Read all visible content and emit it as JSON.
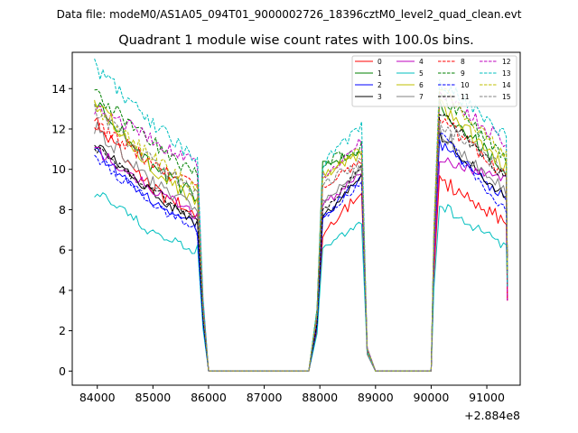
{
  "chart_data": {
    "type": "line",
    "suptitle": "Data file: modeM0/AS1A05_094T01_9000002726_18396cztM0_level2_quad_clean.evt",
    "title": "Quadrant 1 module wise count rates with 100.0s bins.",
    "xlabel": "",
    "ylabel": "",
    "x_offset_label": "+2.884e8",
    "xlim": [
      83550,
      91600
    ],
    "ylim": [
      -0.7,
      15.8
    ],
    "x_ticks": [
      84000,
      85000,
      86000,
      87000,
      88000,
      89000,
      90000,
      91000
    ],
    "x_tick_labels": [
      "84000",
      "85000",
      "86000",
      "87000",
      "88000",
      "89000",
      "90000",
      "91000"
    ],
    "y_ticks": [
      0,
      2,
      4,
      6,
      8,
      10,
      12,
      14
    ],
    "y_tick_labels": [
      "0",
      "2",
      "4",
      "6",
      "8",
      "10",
      "12",
      "14"
    ],
    "legend": {
      "placement": "top-right",
      "columns": 4
    },
    "segments": [
      {
        "start": 83950,
        "end": 85800,
        "end_pad": 85900
      },
      {
        "start": 88050,
        "end": 88750,
        "start_pad": 87950,
        "end_pad": 88850
      },
      {
        "start": 90150,
        "end": 91350,
        "start_pad": 90050
      }
    ],
    "zero_ranges": [
      [
        86000,
        87800
      ],
      [
        89000,
        90000
      ]
    ],
    "series": [
      {
        "name": "0",
        "color": "#ff0000",
        "dash": "solid",
        "a": [
          12.4,
          9.1,
          7.7
        ],
        "b": [
          6.8,
          8.9
        ],
        "c": [
          9.5,
          7.4
        ]
      },
      {
        "name": "1",
        "color": "#008000",
        "dash": "solid",
        "a": [
          13.6,
          10.2,
          8.6
        ],
        "b": [
          10.2,
          10.9
        ],
        "c": [
          13.1,
          9.9
        ]
      },
      {
        "name": "2",
        "color": "#0000ff",
        "dash": "solid",
        "a": [
          10.9,
          8.5,
          7.1
        ],
        "b": [
          7.5,
          9.7
        ],
        "c": [
          11.3,
          8.5
        ]
      },
      {
        "name": "3",
        "color": "#000000",
        "dash": "solid",
        "a": [
          11.4,
          8.8,
          7.3
        ],
        "b": [
          7.7,
          9.6
        ],
        "c": [
          11.7,
          8.6
        ]
      },
      {
        "name": "4",
        "color": "#bf00bf",
        "dash": "solid",
        "a": [
          11.0,
          9.1,
          7.6
        ],
        "b": [
          8.2,
          9.8
        ],
        "c": [
          10.6,
          9.4
        ]
      },
      {
        "name": "5",
        "color": "#00bfbf",
        "dash": "solid",
        "a": [
          8.9,
          6.9,
          6.0
        ],
        "b": [
          6.2,
          7.3
        ],
        "c": [
          8.3,
          6.1
        ]
      },
      {
        "name": "6",
        "color": "#bfbf00",
        "dash": "solid",
        "a": [
          13.4,
          10.0,
          8.4
        ],
        "b": [
          9.7,
          10.8
        ],
        "c": [
          13.2,
          10.1
        ]
      },
      {
        "name": "7",
        "color": "#808080",
        "dash": "solid",
        "a": [
          12.1,
          9.4,
          7.9
        ],
        "b": [
          8.5,
          10.1
        ],
        "c": [
          11.9,
          9.0
        ]
      },
      {
        "name": "8",
        "color": "#ff0000",
        "dash": "dashed",
        "a": [
          12.4,
          10.3,
          9.0
        ],
        "b": [
          9.0,
          10.4
        ],
        "c": [
          12.6,
          9.5
        ]
      },
      {
        "name": "9",
        "color": "#008000",
        "dash": "dashed",
        "a": [
          13.8,
          11.4,
          9.6
        ],
        "b": [
          10.2,
          11.2
        ],
        "c": [
          13.8,
          10.5
        ]
      },
      {
        "name": "10",
        "color": "#0000ff",
        "dash": "dashed",
        "a": [
          10.6,
          8.4,
          6.9
        ],
        "b": [
          7.6,
          9.3
        ],
        "c": [
          11.8,
          7.9
        ]
      },
      {
        "name": "11",
        "color": "#000000",
        "dash": "dashed",
        "a": [
          11.1,
          9.0,
          7.5
        ],
        "b": [
          7.9,
          10.1
        ],
        "c": [
          12.9,
          9.5
        ]
      },
      {
        "name": "12",
        "color": "#bf00bf",
        "dash": "dashed",
        "a": [
          13.1,
          11.5,
          10.2
        ],
        "b": [
          9.7,
          11.4
        ],
        "c": [
          13.9,
          11.2
        ]
      },
      {
        "name": "13",
        "color": "#00bfbf",
        "dash": "dashed",
        "a": [
          15.1,
          12.3,
          10.4
        ],
        "b": [
          10.3,
          12.2
        ],
        "c": [
          14.4,
          11.6
        ]
      },
      {
        "name": "14",
        "color": "#bfbf00",
        "dash": "dashed",
        "a": [
          13.2,
          10.6,
          8.9
        ],
        "b": [
          9.6,
          11.1
        ],
        "c": [
          14.1,
          10.6
        ]
      },
      {
        "name": "15",
        "color": "#808080",
        "dash": "dashed",
        "a": [
          12.9,
          10.4,
          8.8
        ],
        "b": [
          9.2,
          10.5
        ],
        "c": [
          12.3,
          9.8
        ]
      }
    ]
  }
}
